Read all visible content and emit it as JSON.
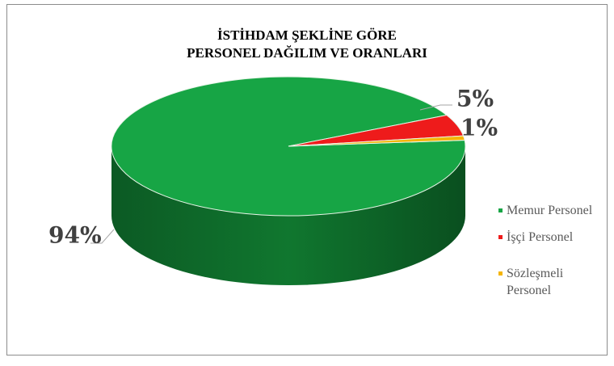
{
  "chart_data": {
    "type": "pie",
    "title": [
      "İSTİHDAM ŞEKLİNE GÖRE",
      "PERSONEL DAĞILIM VE ORANLARI"
    ],
    "categories": [
      "Memur Personel",
      "İşçi Personel",
      "Sözleşmeli Personel"
    ],
    "values": [
      94,
      5,
      1
    ],
    "value_labels": [
      "94%",
      "5%",
      "1%"
    ],
    "colors": [
      "#17a545",
      "#ee1b1b",
      "#f5b400"
    ],
    "legend": "right"
  }
}
